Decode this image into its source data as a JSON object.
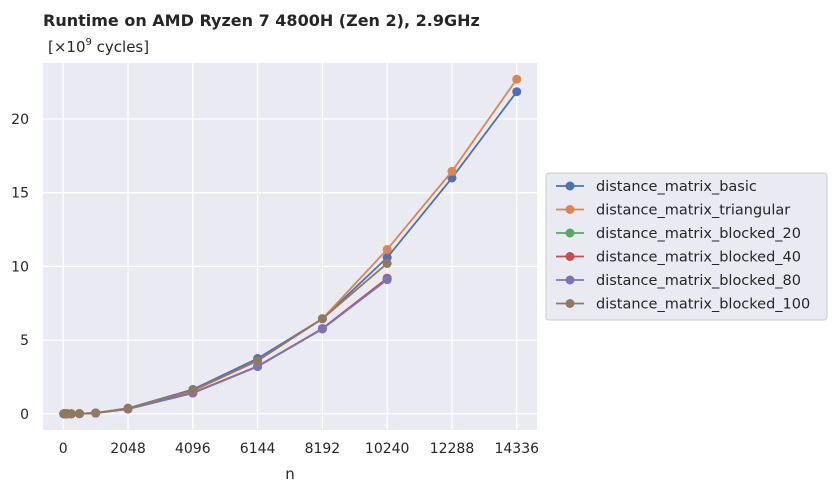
{
  "chart_data": {
    "type": "line",
    "title": "Runtime on AMD Ryzen 7 4800H (Zen 2),  2.9GHz",
    "subtitle_prefix": "[×10",
    "subtitle_exp": "9",
    "subtitle_suffix": " cycles]",
    "xlabel": "n",
    "ylabel": "",
    "xlim": [
      -640,
      14976
    ],
    "ylim": [
      -1.1,
      23.8
    ],
    "x_ticks": [
      0,
      2048,
      4096,
      6144,
      8192,
      10240,
      12288,
      14336
    ],
    "x_tick_labels": [
      "0",
      "2048",
      "4096",
      "6144",
      "8192",
      "10240",
      "12288",
      "14336"
    ],
    "y_ticks": [
      0,
      5,
      10,
      15,
      20
    ],
    "y_tick_labels": [
      "0",
      "5",
      "10",
      "15",
      "20"
    ],
    "grid": true,
    "legend_position": "right-outside",
    "series": [
      {
        "name": "distance_matrix_basic",
        "color": "#4c72b0",
        "x": [
          16,
          64,
          128,
          256,
          512,
          1024,
          2048,
          4096,
          6144,
          8192,
          10240,
          12288,
          14336
        ],
        "y": [
          0.0,
          0.0,
          0.0,
          0.0,
          0.01,
          0.05,
          0.38,
          1.65,
          3.75,
          6.45,
          10.6,
          16.0,
          21.85
        ]
      },
      {
        "name": "distance_matrix_triangular",
        "color": "#dd8452",
        "x": [
          16,
          64,
          128,
          256,
          512,
          1024,
          2048,
          4096,
          6144,
          8192,
          10240,
          12288,
          14336
        ],
        "y": [
          0.0,
          0.0,
          0.0,
          0.0,
          0.01,
          0.05,
          0.35,
          1.55,
          3.6,
          6.45,
          11.15,
          16.45,
          22.7
        ]
      },
      {
        "name": "distance_matrix_blocked_20",
        "color": "#55a868",
        "x": [
          16,
          64,
          128,
          256,
          512,
          1024,
          2048,
          4096,
          6144,
          8192,
          10240
        ],
        "y": [
          0.0,
          0.0,
          0.0,
          0.0,
          0.01,
          0.05,
          0.33,
          1.42,
          3.22,
          5.78,
          9.2
        ]
      },
      {
        "name": "distance_matrix_blocked_40",
        "color": "#c44e52",
        "x": [
          16,
          64,
          128,
          256,
          512,
          1024,
          2048,
          4096,
          6144,
          8192,
          10240
        ],
        "y": [
          0.0,
          0.0,
          0.0,
          0.0,
          0.01,
          0.05,
          0.33,
          1.42,
          3.22,
          5.78,
          9.2
        ]
      },
      {
        "name": "distance_matrix_blocked_80",
        "color": "#8172b3",
        "x": [
          16,
          64,
          128,
          256,
          512,
          1024,
          2048,
          4096,
          6144,
          8192,
          10240
        ],
        "y": [
          0.0,
          0.0,
          0.0,
          0.0,
          0.01,
          0.05,
          0.32,
          1.4,
          3.2,
          5.75,
          9.1
        ]
      },
      {
        "name": "distance_matrix_blocked_100",
        "color": "#937860",
        "x": [
          16,
          64,
          128,
          256,
          512,
          1024,
          2048,
          4096,
          6144,
          8192,
          10240
        ],
        "y": [
          0.0,
          0.0,
          0.0,
          0.0,
          0.01,
          0.05,
          0.36,
          1.6,
          3.6,
          6.45,
          10.2
        ]
      }
    ]
  },
  "colors": {
    "plot_background": "#eaeaf2",
    "grid": "#ffffff",
    "text": "#262626"
  }
}
